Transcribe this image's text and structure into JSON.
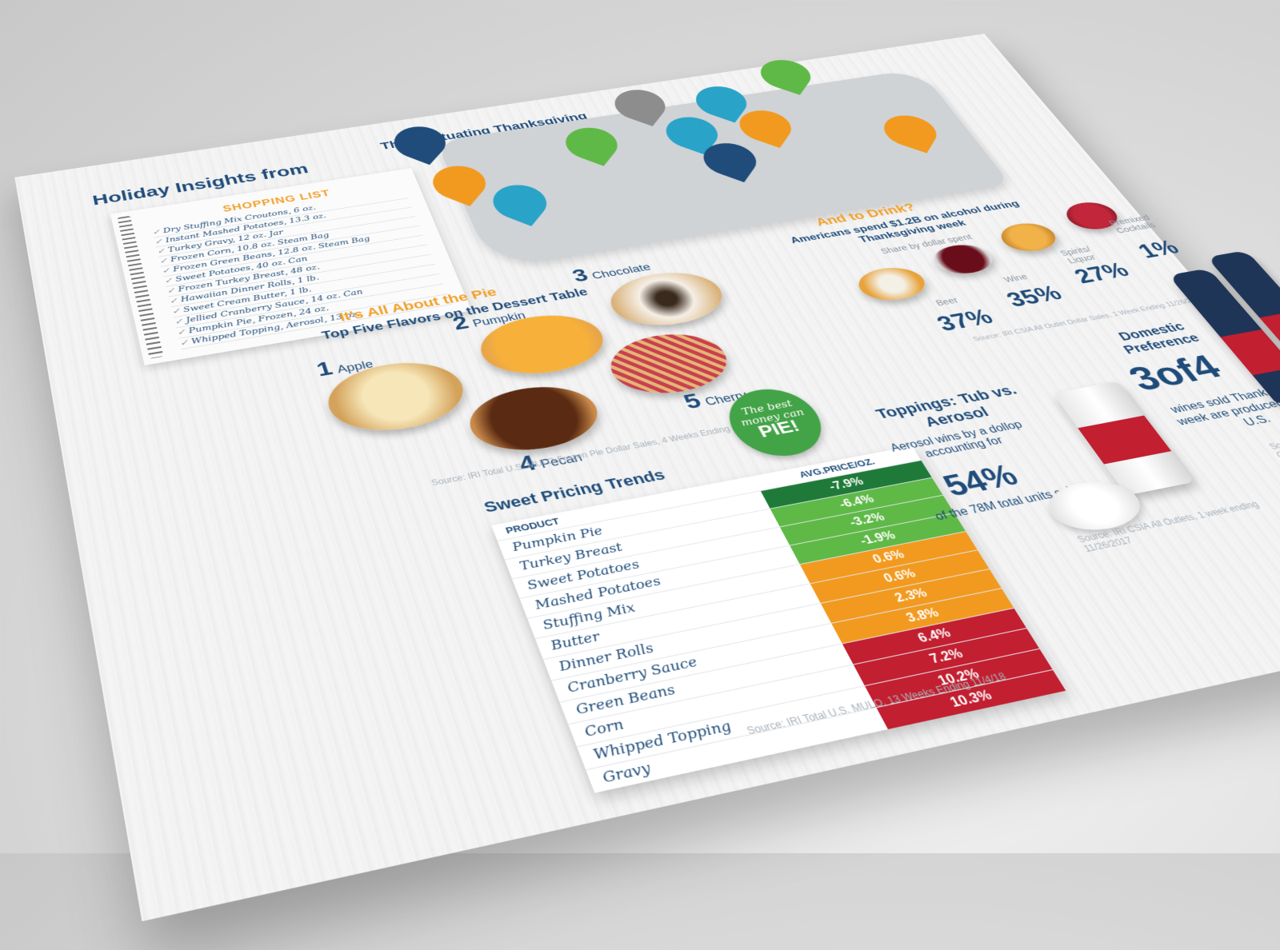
{
  "header": {
    "title": "Holiday Insights from",
    "map_title": "The Fluctuating Thanksgiving"
  },
  "shopping_list": {
    "title": "SHOPPING LIST",
    "items": [
      "Dry Stuffing Mix Croutons, 6 oz.",
      "Instant Mashed Potatoes, 13.3 oz.",
      "Turkey Gravy, 12 oz. Jar",
      "Frozen Corn, 10.8 oz. Steam Bag",
      "Frozen Green Beans, 12.8 oz. Steam Bag",
      "Sweet Potatoes, 40 oz. Can",
      "Frozen Turkey Breast, 48 oz.",
      "Hawaiian Dinner Rolls, 1 lb.",
      "Sweet Cream Butter, 1 lb.",
      "Jellied Cranberry Sauce, 14 oz. Can",
      "Pumpkin Pie, Frozen, 24 oz.",
      "Whipped Topping, Aerosol, 13 oz."
    ]
  },
  "pies": {
    "kicker": "It's All About the Pie",
    "heading": "Top Five Flavors on the Dessert Table",
    "items": [
      {
        "rank": "1",
        "name": "Apple"
      },
      {
        "rank": "2",
        "name": "Pumpkin"
      },
      {
        "rank": "3",
        "name": "Chocolate"
      },
      {
        "rank": "4",
        "name": "Pecan"
      },
      {
        "rank": "5",
        "name": "Cherry"
      }
    ],
    "source": "Source: IRI Total U.S. MULO Frozen Pie Dollar Sales, 4 Weeks Ending 12/4/2017"
  },
  "drinks": {
    "kicker": "And to Drink?",
    "heading": "Americans spend $1.2B on alcohol during Thanksgiving week",
    "sub": "Share by dollar spent",
    "items": [
      {
        "label": "Beer",
        "value": "37%"
      },
      {
        "label": "Wine",
        "value": "35%"
      },
      {
        "label": "Spirits/ Liquor",
        "value": "27%"
      },
      {
        "label": "Premixed Cocktails",
        "value": "1%"
      }
    ],
    "source": "Source: IRI CSIA All Outlet Dollar Sales, 1 Week Ending 11/26/2017"
  },
  "pricing": {
    "title": "Sweet Pricing Trends",
    "badge_line1": "The best",
    "badge_line2": "money can",
    "badge_line3": "PIE!",
    "col_product": "PRODUCT",
    "col_price": "AVG.PRICE/OZ.",
    "rows": [
      {
        "product": "Pumpkin Pie",
        "price": "-7.9%",
        "color": "#1f7a3a"
      },
      {
        "product": "Turkey Breast",
        "price": "-6.4%",
        "color": "#5fb947"
      },
      {
        "product": "Sweet Potatoes",
        "price": "-3.2%",
        "color": "#5fb947"
      },
      {
        "product": "Mashed Potatoes",
        "price": "-1.9%",
        "color": "#5fb947"
      },
      {
        "product": "Stuffing Mix",
        "price": "0.6%",
        "color": "#f29a1f"
      },
      {
        "product": "Butter",
        "price": "0.6%",
        "color": "#f29a1f"
      },
      {
        "product": "Dinner Rolls",
        "price": "2.3%",
        "color": "#f29a1f"
      },
      {
        "product": "Cranberry Sauce",
        "price": "3.8%",
        "color": "#f29a1f"
      },
      {
        "product": "Green Beans",
        "price": "6.4%",
        "color": "#c21f30"
      },
      {
        "product": "Corn",
        "price": "7.2%",
        "color": "#c21f30"
      },
      {
        "product": "Whipped Topping",
        "price": "10.2%",
        "color": "#c21f30"
      },
      {
        "product": "Gravy",
        "price": "10.3%",
        "color": "#c21f30"
      }
    ],
    "source": "Source: IRI Total U.S. MULO, 13 Weeks Ending 11/4/18"
  },
  "toppings": {
    "title": "Toppings: Tub vs. Aerosol",
    "body": "Aerosol wins by a dollop accounting for",
    "big": "54%",
    "body2": "of the 78M total units sold.",
    "source": "Source: IRI CSIA All Outlets, 1 week ending 11/26/2017"
  },
  "domestic": {
    "title": "Domestic Preference",
    "big": "3of4",
    "body": "wines sold Thanksgiving week are produced in the U.S.",
    "source": "Source: IRI CSIA All Outlets W"
  },
  "colors": {
    "navy": "#1f4c7a",
    "orange": "#f2a12a",
    "green": "#5fb947",
    "red": "#c21f30"
  }
}
